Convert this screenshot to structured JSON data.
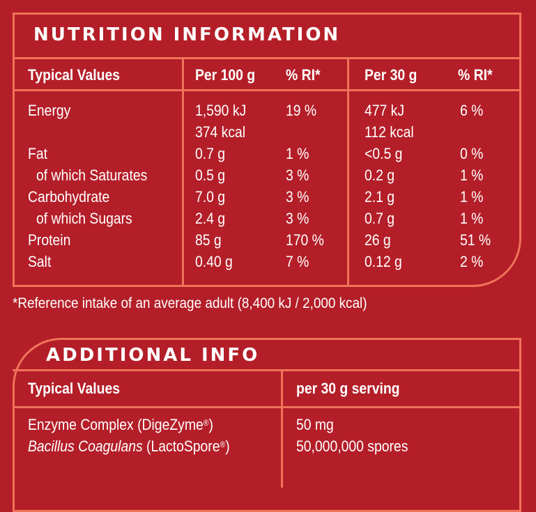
{
  "nutrition": {
    "title": "NUTRITION INFORMATION",
    "headers": {
      "typical_values": "Typical Values",
      "per_100g": "Per 100 g",
      "ri_100g": "% RI*",
      "per_30g": "Per 30 g",
      "ri_30g": "% RI*"
    },
    "rows": [
      {
        "label": "Energy",
        "per_100g": "1,590 kJ",
        "per_100g_extra": "374 kcal",
        "ri_100g": "19 %",
        "per_30g": "477 kJ",
        "per_30g_extra": "112 kcal",
        "ri_30g": "6 %"
      },
      {
        "label": "Fat",
        "per_100g": "0.7 g",
        "ri_100g": "1 %",
        "per_30g": "<0.5 g",
        "ri_30g": "0 %"
      },
      {
        "label": "of which Saturates",
        "per_100g": "0.5 g",
        "ri_100g": "3 %",
        "per_30g": "0.2 g",
        "ri_30g": "1 %"
      },
      {
        "label": "Carbohydrate",
        "per_100g": "7.0 g",
        "ri_100g": "3 %",
        "per_30g": "2.1 g",
        "ri_30g": "1 %"
      },
      {
        "label": "of which Sugars",
        "per_100g": "2.4 g",
        "ri_100g": "3 %",
        "per_30g": "0.7 g",
        "ri_30g": "1 %"
      },
      {
        "label": "Protein",
        "per_100g": "85 g",
        "ri_100g": "170 %",
        "per_30g": "26 g",
        "ri_30g": "51 %"
      },
      {
        "label": "Salt",
        "per_100g": "0.40 g",
        "ri_100g": "7 %",
        "per_30g": "0.12 g",
        "ri_30g": "2 %"
      }
    ]
  },
  "footnote": "*Reference intake of an average adult (8,400 kJ / 2,000 kcal)",
  "additional": {
    "title": "ADDITIONAL INFO",
    "headers": {
      "typical_values": "Typical Values",
      "per_serving": "per 30 g serving"
    },
    "rows": [
      {
        "name": "Enzyme Complex (DigeZyme",
        "mark": "®",
        "close": ")",
        "value": "50 mg"
      },
      {
        "name_italic": "Bacillus Coagulans",
        "name_rest": " (LactoSpore",
        "mark": "®",
        "close": ")",
        "value": "50,000,000 spores"
      }
    ]
  },
  "colors": {
    "background": "#b41e28",
    "border": "#f0735a",
    "text": "#ffffff"
  }
}
